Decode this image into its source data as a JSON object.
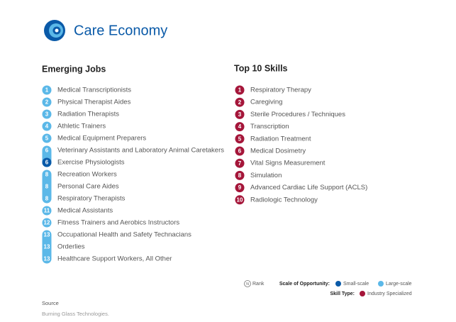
{
  "header": {
    "title": "Care Economy"
  },
  "emerging_jobs": {
    "title": "Emerging Jobs",
    "items": [
      {
        "rank": "1",
        "title": "Medical Transcriptionists",
        "color": "#5bb8e8"
      },
      {
        "rank": "2",
        "title": "Physical Therapist Aides",
        "color": "#5bb8e8"
      },
      {
        "rank": "3",
        "title": "Radiation Therapists",
        "color": "#5bb8e8"
      },
      {
        "rank": "4",
        "title": "Athletic Trainers",
        "color": "#5bb8e8"
      },
      {
        "rank": "5",
        "title": "Medical Equipment Preparers",
        "color": "#5bb8e8"
      },
      {
        "rank": "6",
        "title": "Veterinary Assistants and Laboratory Animal Caretakers",
        "color": "#5bb8e8"
      },
      {
        "rank": "6",
        "title": "Exercise Physiologists",
        "color": "#0a5aa8"
      },
      {
        "rank": "8",
        "title": "Recreation Workers",
        "color": "#5bb8e8"
      },
      {
        "rank": "8",
        "title": "Personal Care Aides",
        "color": "#5bb8e8"
      },
      {
        "rank": "8",
        "title": "Respiratory Therapists",
        "color": "#5bb8e8"
      },
      {
        "rank": "11",
        "title": "Medical Assistants",
        "color": "#5bb8e8"
      },
      {
        "rank": "12",
        "title": "Fitness Trainers and Aerobics Instructors",
        "color": "#5bb8e8"
      },
      {
        "rank": "13",
        "title": "Occupational Health and Safety Technacians",
        "color": "#5bb8e8"
      },
      {
        "rank": "13",
        "title": "Orderlies",
        "color": "#5bb8e8"
      },
      {
        "rank": "13",
        "title": "Healthcare Support Workers, All Other",
        "color": "#5bb8e8"
      }
    ]
  },
  "top_skills": {
    "title": "Top 10 Skills",
    "color": "#a5163a",
    "items": [
      {
        "rank": "1",
        "title": "Respiratory Therapy"
      },
      {
        "rank": "2",
        "title": "Caregiving"
      },
      {
        "rank": "3",
        "title": "Sterile Procedures / Techniques"
      },
      {
        "rank": "4",
        "title": "Transcription"
      },
      {
        "rank": "5",
        "title": "Radiation Treatment"
      },
      {
        "rank": "6",
        "title": "Medical Dosimetry"
      },
      {
        "rank": "7",
        "title": "Vital Signs Measurement"
      },
      {
        "rank": "8",
        "title": "Simulation"
      },
      {
        "rank": "9",
        "title": "Advanced Cardiac Life Support (ACLS)"
      },
      {
        "rank": "10",
        "title": "Radiologic Technology"
      }
    ]
  },
  "legend": {
    "rank_symbol": "N",
    "rank_label": "Rank",
    "scale_title": "Scale of Opportunity:",
    "small_scale": "Small-scale",
    "large_scale": "Large-scale",
    "skill_type_title": "Skill Type:",
    "industry_specialized": "Industry Specialized"
  },
  "source": {
    "label": "Source",
    "text": "Burning Glass Technologies."
  }
}
